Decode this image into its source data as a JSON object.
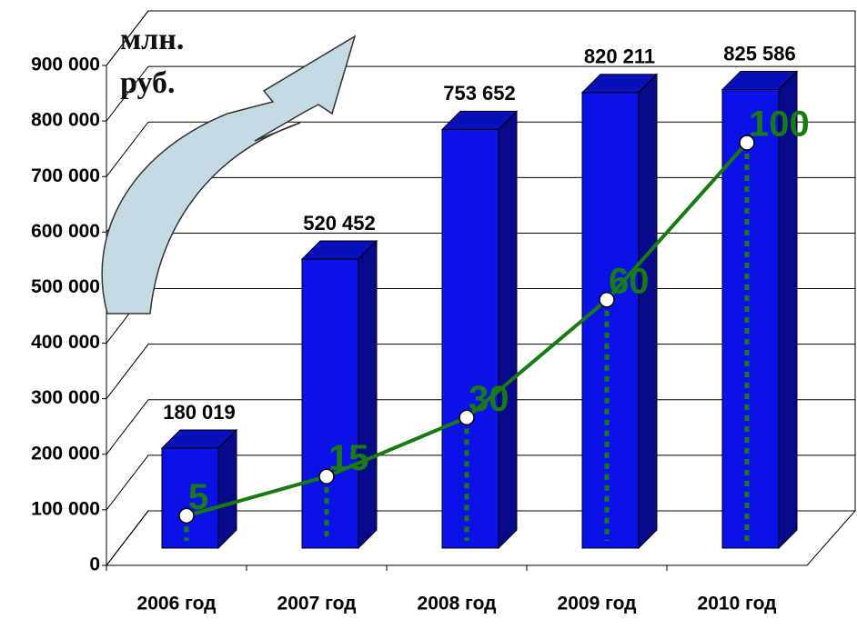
{
  "chart_data": {
    "type": "bar3d",
    "ylabel": "млн. руб.",
    "categories": [
      "2006 год",
      "2007 год",
      "2008 год",
      "2009 год",
      "2010 год"
    ],
    "series": [
      {
        "type": "bar",
        "color": "#0a12e8",
        "values": [
          180019,
          520452,
          753652,
          820211,
          825586
        ],
        "value_labels": [
          "180 019",
          "520 452",
          "753 652",
          "820 211",
          "825 586"
        ]
      },
      {
        "type": "line",
        "color": "#1a7a12",
        "values": [
          5,
          15,
          30,
          60,
          100
        ]
      }
    ],
    "ylim": [
      0,
      900000
    ],
    "yticks": [
      {
        "value": 0,
        "label": "0"
      },
      {
        "value": 100000,
        "label": "100 000"
      },
      {
        "value": 200000,
        "label": "200 000"
      },
      {
        "value": 300000,
        "label": "300 000"
      },
      {
        "value": 400000,
        "label": "400 000"
      },
      {
        "value": 500000,
        "label": "500 000"
      },
      {
        "value": 600000,
        "label": "600 000"
      },
      {
        "value": 700000,
        "label": "700 000"
      },
      {
        "value": 800000,
        "label": "800 000"
      },
      {
        "value": 900000,
        "label": "900 000"
      }
    ],
    "grid": true
  }
}
